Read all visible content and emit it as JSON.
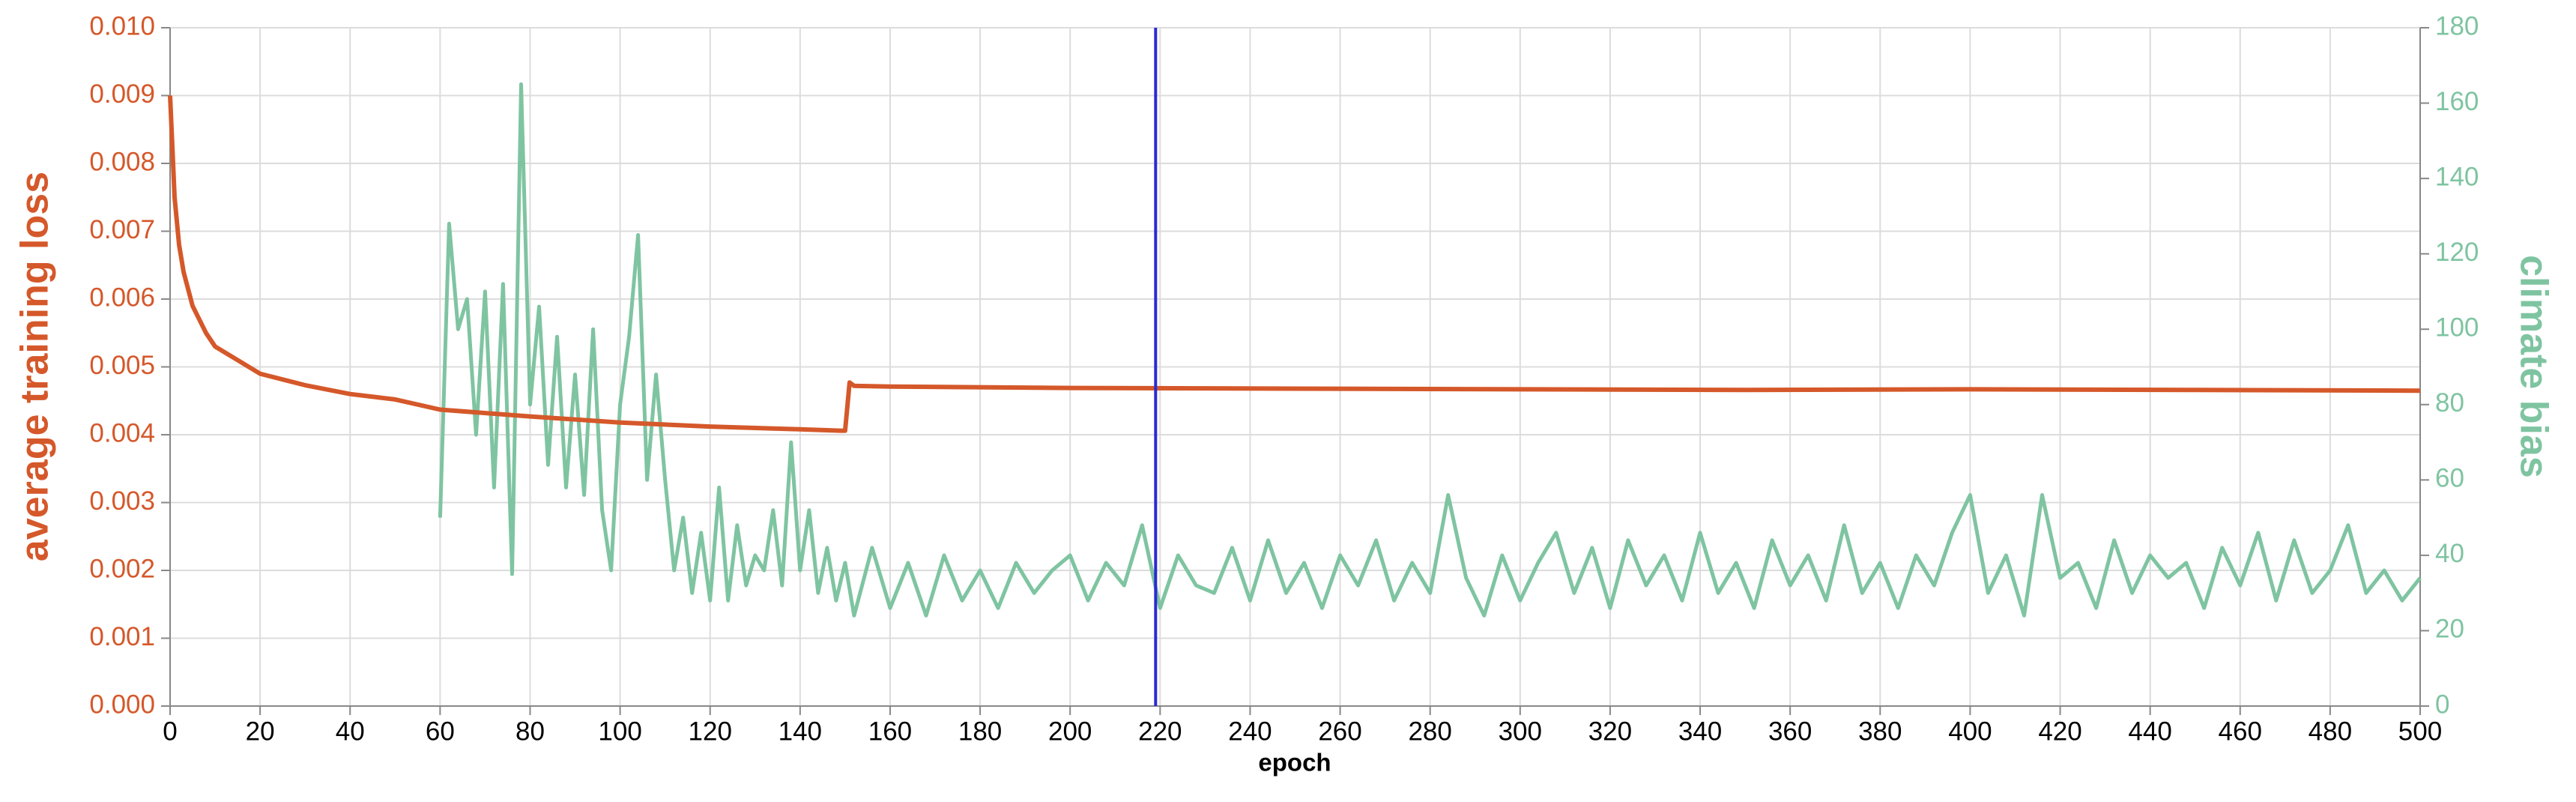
{
  "chart_data": {
    "type": "line",
    "x_label": "epoch",
    "y_label": "average training loss",
    "y2_label": "climate bias",
    "xlim": [
      0,
      500
    ],
    "xticks": [
      0,
      20,
      40,
      60,
      80,
      100,
      120,
      140,
      160,
      180,
      200,
      220,
      240,
      260,
      280,
      300,
      320,
      340,
      360,
      380,
      400,
      420,
      440,
      460,
      480,
      500
    ],
    "ylim": [
      0,
      0.01
    ],
    "yticks": [
      {
        "value": 0,
        "label": "0.000"
      },
      {
        "value": 0.001,
        "label": "0.001"
      },
      {
        "value": 0.002,
        "label": "0.002"
      },
      {
        "value": 0.003,
        "label": "0.003"
      },
      {
        "value": 0.004,
        "label": "0.004"
      },
      {
        "value": 0.005,
        "label": "0.005"
      },
      {
        "value": 0.006,
        "label": "0.006"
      },
      {
        "value": 0.007,
        "label": "0.007"
      },
      {
        "value": 0.008,
        "label": "0.008"
      },
      {
        "value": 0.009,
        "label": "0.009"
      },
      {
        "value": 0.01,
        "label": "0.010"
      }
    ],
    "y2lim": [
      0,
      180
    ],
    "y2ticks": [
      0,
      20,
      40,
      60,
      80,
      100,
      120,
      140,
      160,
      180
    ],
    "grid": true,
    "y_color": "#d5582a",
    "y2_color": "#7fc4a1",
    "cursor_epoch": 219,
    "cursor_color": "#2a2ad5",
    "series": [
      {
        "color": "#d5582a",
        "axis": "y",
        "x": [
          0,
          1,
          2,
          3,
          5,
          8,
          10,
          15,
          20,
          30,
          40,
          50,
          60,
          80,
          100,
          120,
          140,
          149,
          150,
          151,
          152,
          160,
          200,
          250,
          300,
          350,
          400,
          450,
          500
        ],
        "values": [
          0.009,
          0.0075,
          0.0068,
          0.0064,
          0.0059,
          0.0055,
          0.0053,
          0.0051,
          0.0049,
          0.00473,
          0.0046,
          0.00452,
          0.00437,
          0.00427,
          0.00418,
          0.00412,
          0.00408,
          0.00406,
          0.00406,
          0.00477,
          0.00472,
          0.00471,
          0.00469,
          0.00468,
          0.00467,
          0.00466,
          0.00467,
          0.00466,
          0.00465
        ]
      },
      {
        "color": "#7fc4a1",
        "axis": "y2",
        "x": [
          60,
          62,
          64,
          66,
          68,
          70,
          72,
          74,
          76,
          78,
          80,
          82,
          84,
          86,
          88,
          90,
          92,
          94,
          96,
          98,
          100,
          102,
          104,
          106,
          108,
          110,
          112,
          114,
          116,
          118,
          120,
          122,
          124,
          126,
          128,
          130,
          132,
          134,
          136,
          138,
          140,
          142,
          144,
          146,
          148,
          150,
          152,
          156,
          160,
          164,
          168,
          172,
          176,
          180,
          184,
          188,
          192,
          196,
          200,
          204,
          208,
          212,
          216,
          220,
          224,
          228,
          232,
          236,
          240,
          244,
          248,
          252,
          256,
          260,
          264,
          268,
          272,
          276,
          280,
          284,
          288,
          292,
          296,
          300,
          304,
          308,
          312,
          316,
          320,
          324,
          328,
          332,
          336,
          340,
          344,
          348,
          352,
          356,
          360,
          364,
          368,
          372,
          376,
          380,
          384,
          388,
          392,
          396,
          400,
          404,
          408,
          412,
          416,
          420,
          424,
          428,
          432,
          436,
          440,
          444,
          448,
          452,
          456,
          460,
          464,
          468,
          472,
          476,
          480,
          484,
          488,
          492,
          496,
          500
        ],
        "values": [
          50,
          128,
          100,
          108,
          72,
          110,
          58,
          112,
          35,
          165,
          80,
          106,
          64,
          98,
          58,
          88,
          56,
          100,
          52,
          36,
          80,
          98,
          125,
          60,
          88,
          60,
          36,
          50,
          30,
          46,
          28,
          58,
          28,
          48,
          32,
          40,
          36,
          52,
          32,
          70,
          36,
          52,
          30,
          42,
          28,
          38,
          24,
          42,
          26,
          38,
          24,
          40,
          28,
          36,
          26,
          38,
          30,
          36,
          40,
          28,
          38,
          32,
          48,
          26,
          40,
          32,
          30,
          42,
          28,
          44,
          30,
          38,
          26,
          40,
          32,
          44,
          28,
          38,
          30,
          56,
          34,
          24,
          40,
          28,
          38,
          46,
          30,
          42,
          26,
          44,
          32,
          40,
          28,
          46,
          30,
          38,
          26,
          44,
          32,
          40,
          28,
          48,
          30,
          38,
          26,
          40,
          32,
          46,
          56,
          30,
          40,
          24,
          56,
          34,
          38,
          26,
          44,
          30,
          40,
          34,
          38,
          26,
          42,
          32,
          46,
          28,
          44,
          30,
          36,
          48,
          30,
          36,
          28,
          34
        ]
      }
    ]
  }
}
